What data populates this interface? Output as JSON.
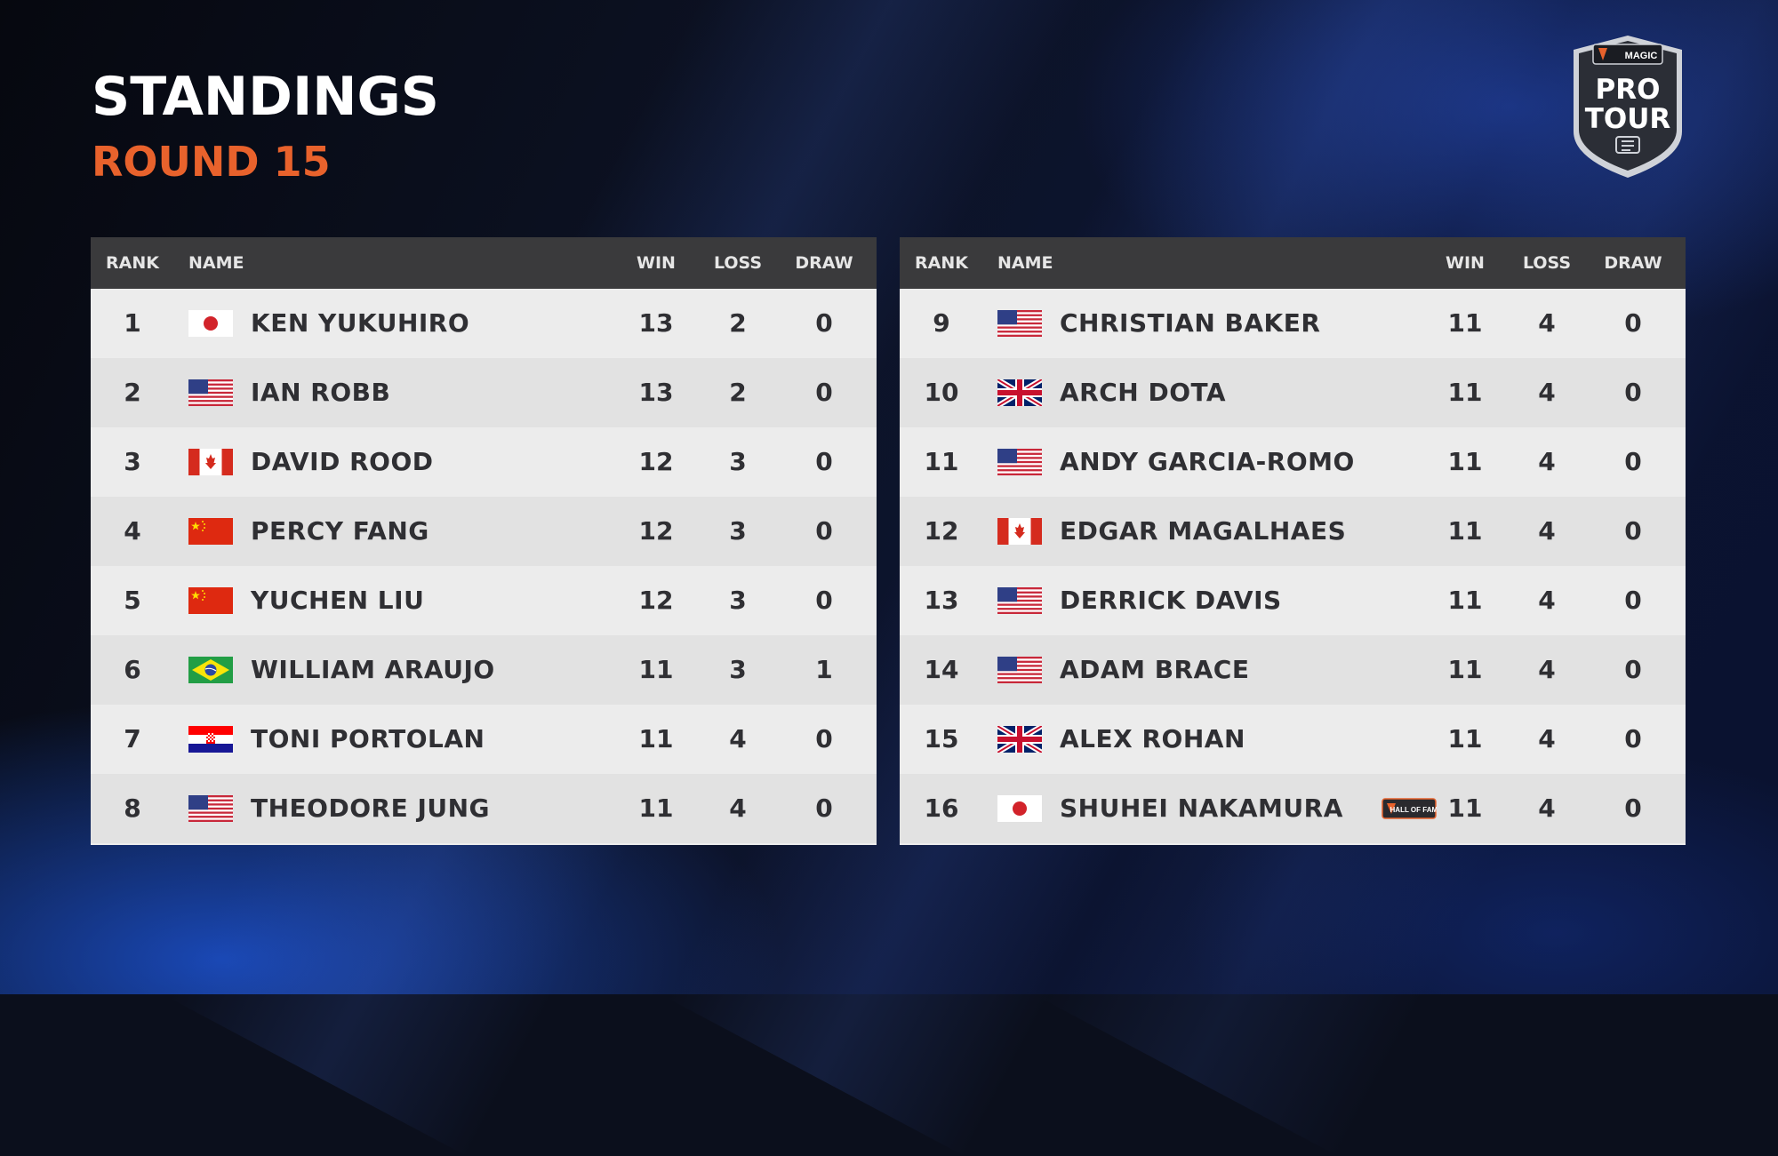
{
  "header": {
    "title": "STANDINGS",
    "subtitle": "ROUND 15"
  },
  "logo": {
    "brand": "MAGIC",
    "line1": "PRO",
    "line2": "TOUR",
    "icon": "pro-tour-shield-logo"
  },
  "columns": {
    "rank": "RANK",
    "name": "NAME",
    "win": "WIN",
    "loss": "LOSS",
    "draw": "DRAW"
  },
  "left_table": [
    {
      "rank": "1",
      "flag": "japan",
      "name": "KEN YUKUHIRO",
      "win": "13",
      "loss": "2",
      "draw": "0"
    },
    {
      "rank": "2",
      "flag": "usa",
      "name": "IAN ROBB",
      "win": "13",
      "loss": "2",
      "draw": "0"
    },
    {
      "rank": "3",
      "flag": "canada",
      "name": "DAVID ROOD",
      "win": "12",
      "loss": "3",
      "draw": "0"
    },
    {
      "rank": "4",
      "flag": "china",
      "name": "PERCY FANG",
      "win": "12",
      "loss": "3",
      "draw": "0"
    },
    {
      "rank": "5",
      "flag": "china",
      "name": "YUCHEN LIU",
      "win": "12",
      "loss": "3",
      "draw": "0"
    },
    {
      "rank": "6",
      "flag": "brazil",
      "name": "WILLIAM ARAUJO",
      "win": "11",
      "loss": "3",
      "draw": "1"
    },
    {
      "rank": "7",
      "flag": "croatia",
      "name": "TONI PORTOLAN",
      "win": "11",
      "loss": "4",
      "draw": "0"
    },
    {
      "rank": "8",
      "flag": "usa",
      "name": "THEODORE JUNG",
      "win": "11",
      "loss": "4",
      "draw": "0"
    }
  ],
  "right_table": [
    {
      "rank": "9",
      "flag": "usa",
      "name": "CHRISTIAN BAKER",
      "win": "11",
      "loss": "4",
      "draw": "0"
    },
    {
      "rank": "10",
      "flag": "uk",
      "name": "ARCH DOTA",
      "win": "11",
      "loss": "4",
      "draw": "0"
    },
    {
      "rank": "11",
      "flag": "usa",
      "name": "ANDY GARCIA-ROMO",
      "win": "11",
      "loss": "4",
      "draw": "0"
    },
    {
      "rank": "12",
      "flag": "canada",
      "name": "EDGAR MAGALHAES",
      "win": "11",
      "loss": "4",
      "draw": "0"
    },
    {
      "rank": "13",
      "flag": "usa",
      "name": "DERRICK DAVIS",
      "win": "11",
      "loss": "4",
      "draw": "0"
    },
    {
      "rank": "14",
      "flag": "usa",
      "name": "ADAM BRACE",
      "win": "11",
      "loss": "4",
      "draw": "0"
    },
    {
      "rank": "15",
      "flag": "uk",
      "name": "ALEX ROHAN",
      "win": "11",
      "loss": "4",
      "draw": "0"
    },
    {
      "rank": "16",
      "flag": "japan",
      "name": "SHUHEI NAKAMURA",
      "win": "11",
      "loss": "4",
      "draw": "0",
      "badge": "HALL OF FAME"
    }
  ],
  "colors": {
    "title": "#ffffff",
    "subtitle": "#e8622c",
    "header_bg": "#3a3a3c",
    "row_light": "#ececec",
    "row_dark": "#e2e2e2",
    "row_text": "#2f2f33"
  }
}
